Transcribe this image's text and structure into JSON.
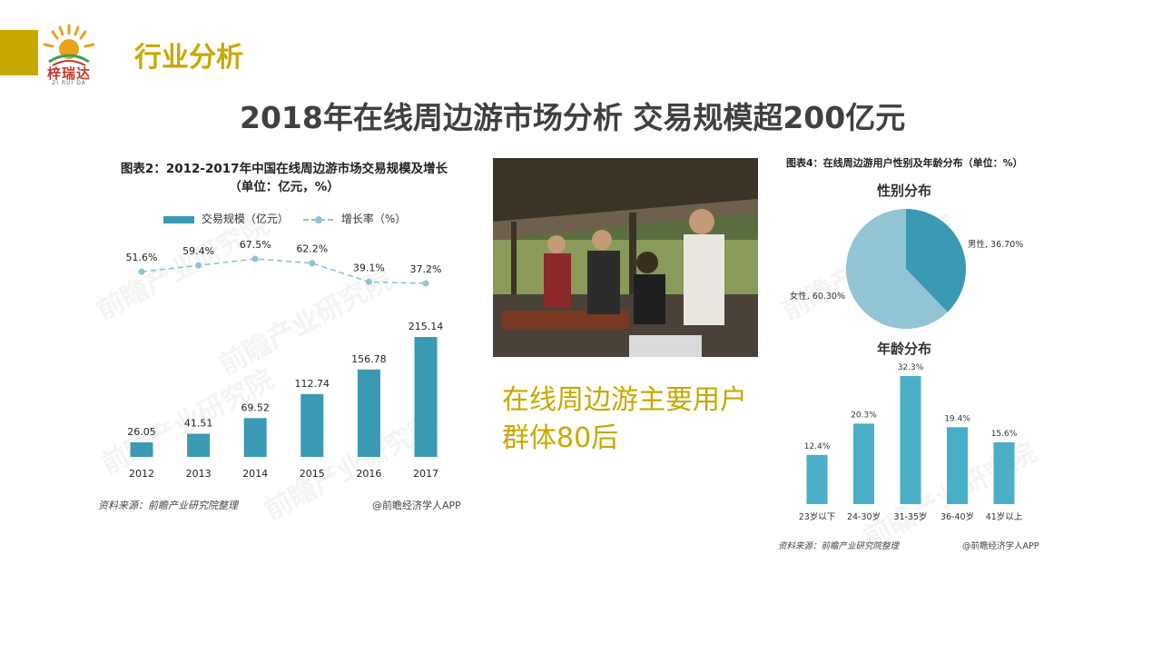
{
  "header": {
    "logo_text": "梓瑞达",
    "logo_sub": "ZI RUI DA",
    "section_title": "行业分析",
    "main_title": "2018年在线周边游市场分析 交易规模超200亿元"
  },
  "chart_data": [
    {
      "type": "bar",
      "title": "图表2：2012-2017年中国在线周边游市场交易规模及增长",
      "subtitle": "（单位：亿元，%）",
      "categories": [
        "2012",
        "2013",
        "2014",
        "2015",
        "2016",
        "2017"
      ],
      "series": [
        {
          "name": "交易规模（亿元）",
          "type": "bar",
          "values": [
            26.05,
            41.51,
            69.52,
            112.74,
            156.78,
            215.14
          ],
          "labels": [
            "26.05",
            "41.51",
            "69.52",
            "112.74",
            "156.78",
            "215.14"
          ]
        },
        {
          "name": "增长率（%）",
          "type": "line",
          "values": [
            51.6,
            59.4,
            67.5,
            62.2,
            39.1,
            37.2
          ],
          "labels": [
            "51.6%",
            "59.4%",
            "67.5%",
            "62.2%",
            "39.1%",
            "37.2%"
          ]
        }
      ],
      "source": "资料来源：前瞻产业研究院整理",
      "credit": "@前瞻经济学人APP",
      "colors": {
        "bar": "#3a99b3",
        "line": "#8fc2d4"
      }
    },
    {
      "type": "pie",
      "title": "性别分布",
      "slices": [
        {
          "label": "男性, 36.70%",
          "value": 36.7,
          "color": "#3a99b3"
        },
        {
          "label": "女性, 60.30%",
          "value": 60.3,
          "color": "#93c4d6"
        }
      ]
    },
    {
      "type": "bar",
      "title": "年龄分布",
      "categories": [
        "23岁以下",
        "24-30岁",
        "31-35岁",
        "36-40岁",
        "41岁以上"
      ],
      "values": [
        12.4,
        20.3,
        32.3,
        19.4,
        15.6
      ],
      "labels": [
        "12.4%",
        "20.3%",
        "32.3%",
        "19.4%",
        "15.6%"
      ],
      "colors": {
        "bar": "#4aaec6"
      }
    }
  ],
  "right_panel": {
    "title": "图表4：在线周边游用户性别及年龄分布（单位：%）",
    "source": "资料来源：前瞻产业研究院整理",
    "credit": "@前瞻经济学人APP"
  },
  "photo_caption": "在线周边游主要用户群体80后",
  "watermark": "前瞻产业研究院"
}
